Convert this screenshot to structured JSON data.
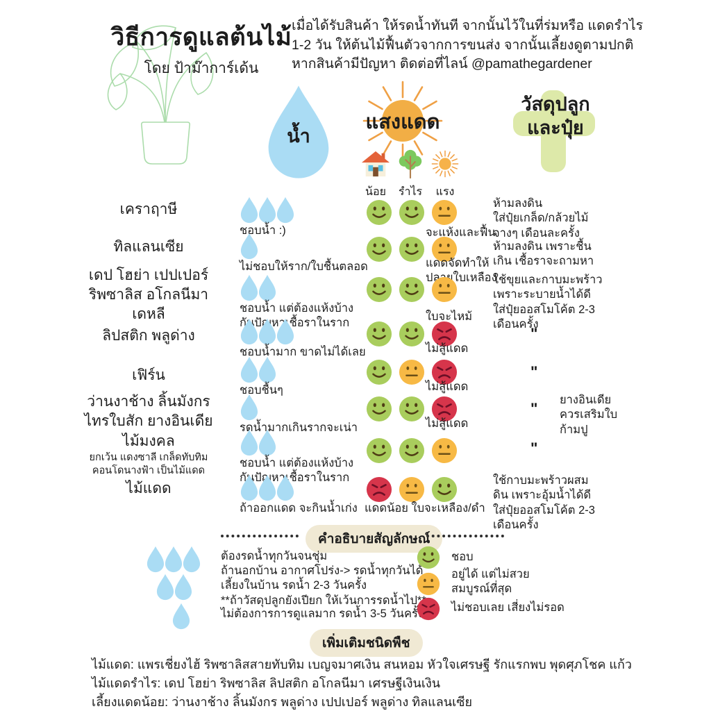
{
  "header": {
    "title": "วิธีการดูแลต้นไม้",
    "byline": "โดย ป้าม๊าการ์เด้น",
    "intro": "เมื่อได้รับสินค้า ให้รดน้ำทันที จากนั้นไว้ในที่ร่มหรือ แดดรำไร\n1-2 วัน ให้ต้นไม้ฟื้นตัวจากการขนส่ง จากนั้นเลี้ยงดูตามปกติ\nหากสินค้ามีปัญหา ติดต่อที่ไลน์ @pamathegardener"
  },
  "columns": {
    "water_label": "น้ำ",
    "sun_label": "แสงแดด",
    "material_label_line1": "วัสดุปลูก",
    "material_label_line2": "และปุ๋ย",
    "sun_levels": [
      {
        "icon": "house-icon",
        "label": "น้อย"
      },
      {
        "icon": "tree-icon",
        "label": "รำไร"
      },
      {
        "icon": "sun-icon",
        "label": "แรง"
      }
    ]
  },
  "rows": [
    {
      "plant": "เคราฤาษี",
      "drops": 3,
      "water_note": "ชอบน้ำ :)",
      "faces": [
        "happy",
        "happy",
        "neutral"
      ],
      "face_note": "จะแห้งและฟื้น",
      "material_note": "ห้ามลงดิน\nใส่ปุ๋ยเกล็ด/กล้วยไม้\nจางๆ เดือนละครั้ง"
    },
    {
      "plant": "ทิลแลนเซีย",
      "drops": 1,
      "water_note": "ไม่ชอบให้ราก/ใบชื้นตลอด",
      "faces": [
        "happy",
        "happy",
        "neutral"
      ],
      "face_note": "แดดจัดทำให้\nปลายใบเหลือง",
      "material_note": "ห้ามลงดิน เพราะชื้น\nเกิน เชื้อราจะถามหา"
    },
    {
      "plant": "เดป โฮย่า เปปเปอร์\nริพซาลิส อโกลนีมา\nเดหลี",
      "drops": 2,
      "water_note": "ชอบน้ำ แต่ต้องแห้งบ้าง\nกันปัญหาเชื้อราในราก",
      "faces": [
        "happy",
        "happy",
        "neutral"
      ],
      "face_note": "ใบจะไหม้",
      "material_note": "ใช้ขุยและกาบมะพร้าว\nเพราะระบายน้ำได้ดี\nใส่ปุ๋ยออสโมโค้ต 2-3\nเดือนครั้ง"
    },
    {
      "plant": "ลิปสติก พลูด่าง",
      "drops": 3,
      "water_note": "ชอบน้ำมาก ขาดไม่ได้เลย",
      "faces": [
        "happy",
        "happy",
        "angry"
      ],
      "face_note": "ไม่สู้แดด",
      "material_note": "\""
    },
    {
      "plant": "เฟิร์น",
      "drops": 2,
      "water_note": "ชอบชื้นๆ",
      "faces": [
        "happy",
        "neutral",
        "angry"
      ],
      "face_note": "ไม่สู้แดด",
      "material_note": "\""
    },
    {
      "plant": "ว่านงาช้าง ลิ้นมังกร\nไทรใบสัก ยางอินเดีย",
      "drops": 1,
      "water_note": "รดน้ำมากเกินรากจะเน่า",
      "faces": [
        "happy",
        "happy",
        "angry"
      ],
      "face_note": "ไม่สู้แดด",
      "material_note": "\"",
      "material_side_note": "ยางอินเดีย\nควรเสริมใบ\nก้ามปู"
    },
    {
      "plant": "ไม้มงคล",
      "plant_sub": "ยกเว้น แดงซาลี เกล็ดทับทิม\nคอนโดนางฟ้า เป็นไม้แดด",
      "drops": 2,
      "water_note": "ชอบน้ำ แต่ต้องแห้งบ้าง\nกันปัญหาเชื้อราในราก",
      "faces": [
        "happy",
        "happy",
        "neutral"
      ],
      "face_note": "",
      "material_note": "\""
    },
    {
      "plant": "ไม้แดด",
      "drops": 3,
      "water_note": "ถ้าออกแดด จะกินน้ำเก่ง",
      "faces": [
        "angry",
        "neutral",
        "happy"
      ],
      "face_note": "แดดน้อย ใบจะเหลือง/ดำ",
      "material_note": "ใช้กาบมะพร้าวผสม\nดิน เพราะอุ้มน้ำได้ดี\nใส่ปุ๋ยออสโมโค้ต 2-3\nเดือนครั้ง"
    }
  ],
  "legend": {
    "title": "คำอธิบายสัญลักษณ์",
    "water_items": [
      {
        "drops": 3,
        "text": "ต้องรดน้ำทุกวันจนชุ่ม"
      },
      {
        "drops": 2,
        "text": "ถ้านอกบ้าน อากาศโปร่ง-> รดน้ำทุกวันได้\nเลี้ยงในบ้าน รดน้ำ 2-3 วันครั้ง\n**ถ้าวัสดุปลูกยังเปียก ให้เว้นการรดน้ำไป**"
      },
      {
        "drops": 1,
        "text": "ไม่ต้องการการดูแลมาก รดน้ำ 3-5 วันครั้ง"
      }
    ],
    "face_items": [
      {
        "face": "happy",
        "text": "ชอบ"
      },
      {
        "face": "neutral",
        "text": "อยู่ได้ แต่ไม่สวย\nสมบูรณ์ที่สุด"
      },
      {
        "face": "angry",
        "text": "ไม่ชอบเลย เสี่ยงไม่รอด"
      }
    ]
  },
  "extra": {
    "title": "เพิ่มเติมชนิดพืช",
    "lines": [
      "ไม้แดด: แพรเชี่ยงไฮ้ ริพซาลิสสายทับทิม เบญจมาศเงิน สนหอม หัวใจเศรษฐี รักแรกพบ พุดศุภโชค แก้ว",
      "ไม้แดดรำไร: เดป โฮย่า ริพซาลิส ลิปสติก อโกลนีมา เศรษฐีเงินเงิน",
      "เลี้ยงแดดน้อย: ว่านงาช้าง ลิ้นมังกร พลูด่าง เปปเปอร์ พลูด่าง ทิลแลนเซีย"
    ]
  },
  "colors": {
    "drop": "#aadcf4",
    "big_drop": "#c0ddf0",
    "happy": "#a9cd5d",
    "neutral": "#f7b945",
    "angry": "#d6354b",
    "pill_bg": "#f0e9d4",
    "plus_bg": "#dde9a9",
    "sun": "#f2ae45",
    "plant_line": "#abdcab"
  }
}
